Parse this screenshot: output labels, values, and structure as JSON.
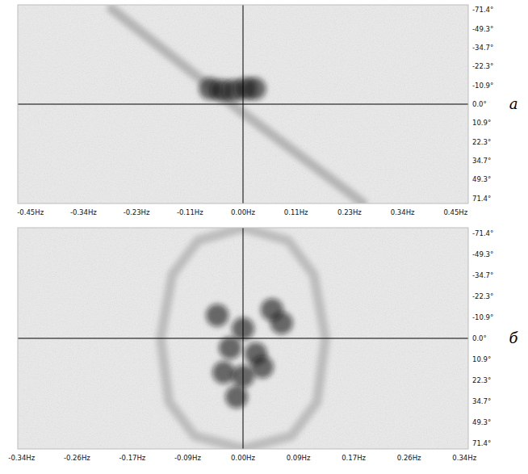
{
  "chart_data": [
    {
      "type": "scatter",
      "title": "а",
      "xlim": [
        -0.48,
        0.48
      ],
      "xticks": [
        {
          "value": -0.453,
          "label": "-0.45Hz"
        },
        {
          "value": -0.34,
          "label": "-0.34Hz"
        },
        {
          "value": -0.227,
          "label": "-0.23Hz"
        },
        {
          "value": -0.113,
          "label": "-0.11Hz"
        },
        {
          "value": 0,
          "label": "0.00Hz"
        },
        {
          "value": 0.113,
          "label": "0.11Hz"
        },
        {
          "value": 0.227,
          "label": "0.23Hz"
        },
        {
          "value": 0.34,
          "label": "0.34Hz"
        },
        {
          "value": 0.453,
          "label": "0.45Hz"
        }
      ],
      "ylim": [
        -90,
        90
      ],
      "yticks": [
        {
          "value": -71.4,
          "label": "-71.4°"
        },
        {
          "value": -49.3,
          "label": "-49.3°"
        },
        {
          "value": -34.7,
          "label": "-34.7°"
        },
        {
          "value": -22.3,
          "label": "-22.3°"
        },
        {
          "value": -10.9,
          "label": "-10.9°"
        },
        {
          "value": 0,
          "label": "0.0°"
        },
        {
          "value": 10.9,
          "label": "10.9°"
        },
        {
          "value": 22.3,
          "label": "22.3°"
        },
        {
          "value": 34.7,
          "label": "34.7°"
        },
        {
          "value": 49.3,
          "label": "49.3°"
        },
        {
          "value": 71.4,
          "label": "71.4°"
        }
      ],
      "series": [
        {
          "type": "line",
          "color": "#8c8c8c",
          "x": [
            -0.28,
            0,
            0.255
          ],
          "values": [
            -74,
            5,
            84
          ]
        },
        {
          "type": "scatter",
          "color": "#151515",
          "x": [
            -0.07,
            -0.045,
            -0.02,
            0.005,
            0.025
          ],
          "values": [
            -9,
            -8,
            -8,
            -9,
            -9
          ]
        }
      ]
    },
    {
      "type": "scatter",
      "title": "б",
      "xlim": [
        -0.35,
        0.35
      ],
      "xticks": [
        {
          "value": -0.344,
          "label": "-0.34Hz"
        },
        {
          "value": -0.258,
          "label": "-0.26Hz"
        },
        {
          "value": -0.172,
          "label": "-0.17Hz"
        },
        {
          "value": -0.086,
          "label": "-0.09Hz"
        },
        {
          "value": 0,
          "label": "0.00Hz"
        },
        {
          "value": 0.086,
          "label": "0.09Hz"
        },
        {
          "value": 0.172,
          "label": "0.17Hz"
        },
        {
          "value": 0.258,
          "label": "0.26Hz"
        },
        {
          "value": 0.344,
          "label": "0.34Hz"
        }
      ],
      "ylim": [
        -90,
        90
      ],
      "yticks": [
        {
          "value": -71.4,
          "label": "-71.4°"
        },
        {
          "value": -49.3,
          "label": "-49.3°"
        },
        {
          "value": -34.7,
          "label": "-34.7°"
        },
        {
          "value": -22.3,
          "label": "-22.3°"
        },
        {
          "value": -10.9,
          "label": "-10.9°"
        },
        {
          "value": 0,
          "label": "0.0°"
        },
        {
          "value": 10.9,
          "label": "10.9°"
        },
        {
          "value": 22.3,
          "label": "22.3°"
        },
        {
          "value": 34.7,
          "label": "34.7°"
        },
        {
          "value": 49.3,
          "label": "49.3°"
        },
        {
          "value": 71.4,
          "label": "71.4°"
        }
      ],
      "series": [
        {
          "type": "line",
          "color": "#9a9a9a",
          "x": [
            0,
            0.07,
            0.11,
            0.128,
            0.115,
            0.075,
            0,
            -0.075,
            -0.115,
            -0.128,
            -0.11,
            -0.07,
            0
          ],
          "values": [
            -88,
            -62,
            -35,
            0,
            35,
            62,
            88,
            62,
            35,
            0,
            -35,
            -62,
            -88
          ]
        },
        {
          "type": "scatter",
          "color": "#111111",
          "x": [
            -0.04,
            -0.02,
            0,
            0.02,
            -0.03,
            0,
            0.03,
            0.06,
            -0.01,
            0.045
          ],
          "values": [
            -12,
            5,
            -5,
            8,
            18,
            20,
            15,
            -8,
            32,
            -15
          ]
        }
      ]
    }
  ]
}
